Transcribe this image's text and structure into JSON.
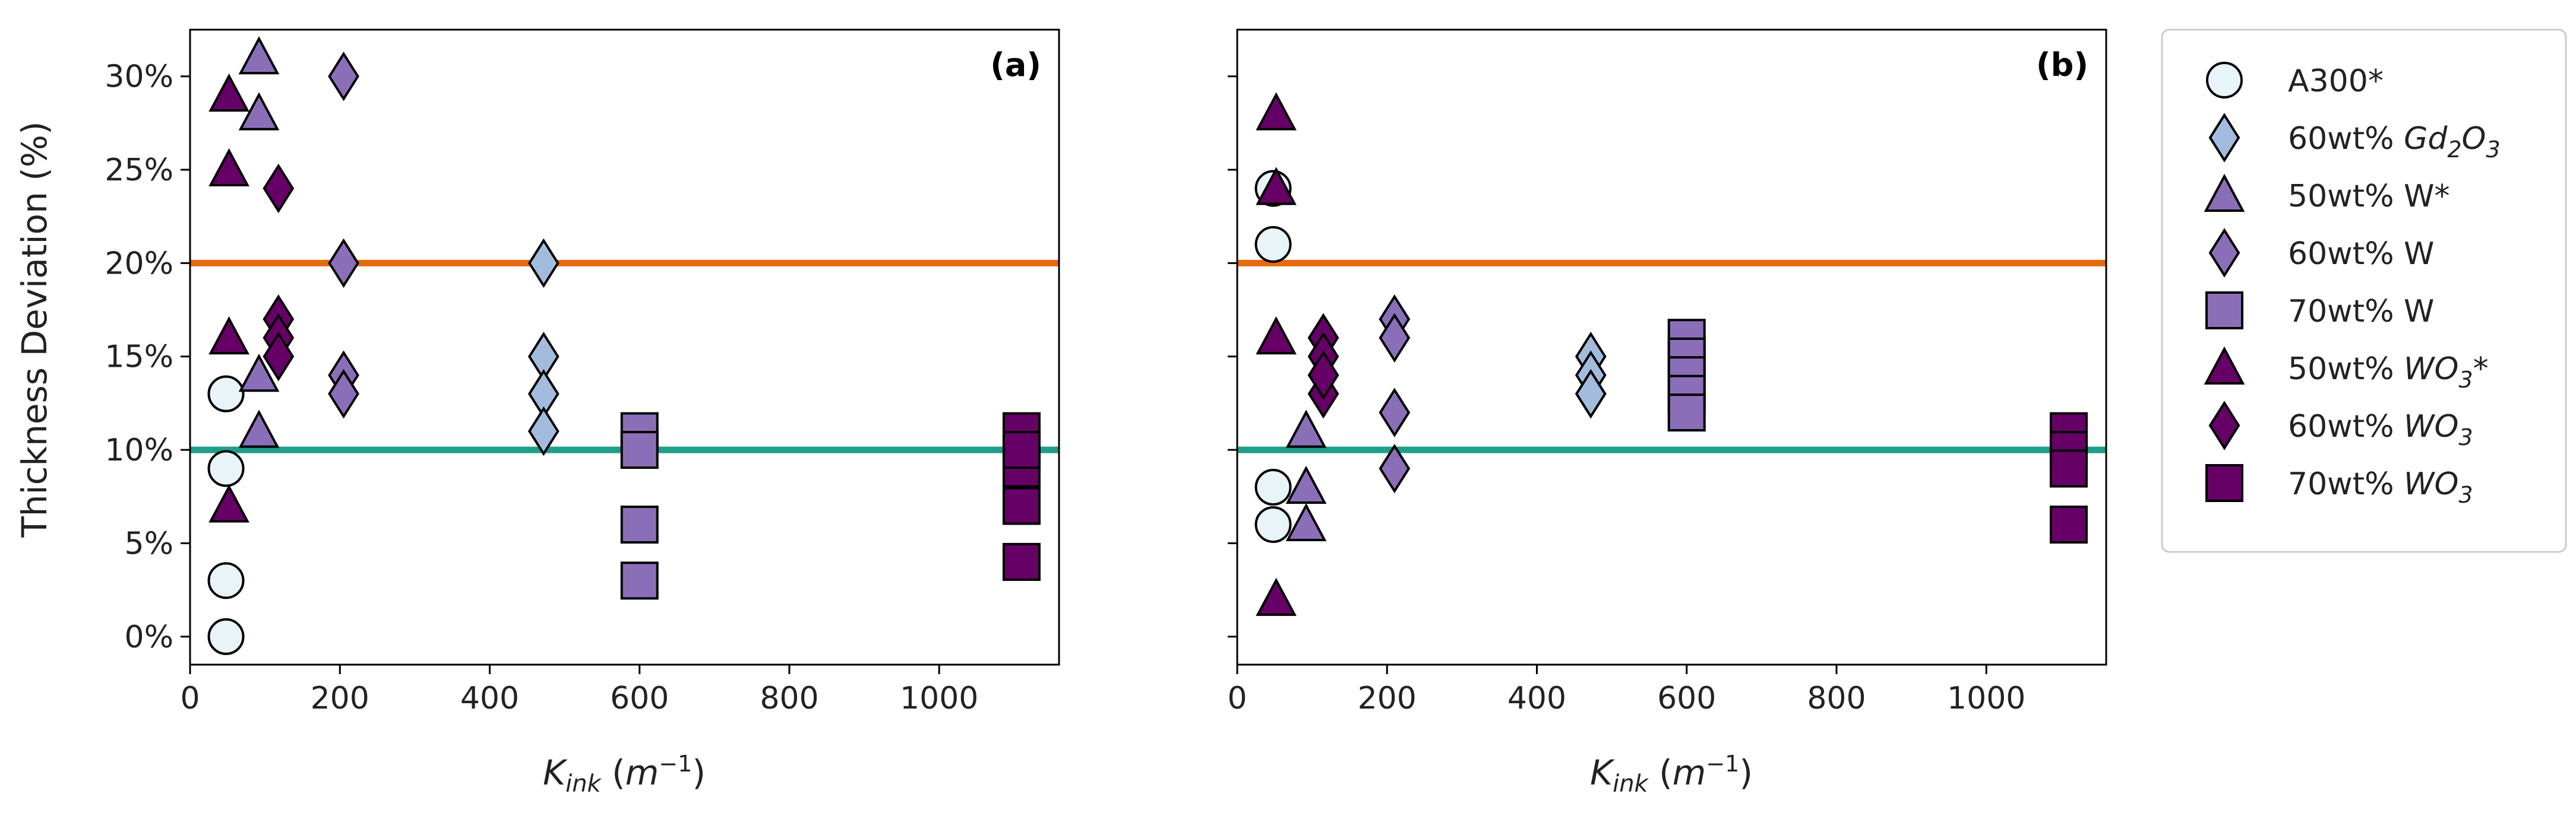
{
  "colors": {
    "A300": "#e8f4f8",
    "Gd2O3": "#a3bcde",
    "W": "#8a6fb8",
    "WO3": "#660066",
    "upper_line": "#e66a10",
    "lower_line": "#1f9e89"
  },
  "legend": [
    {
      "key": "a300",
      "label": "A300*",
      "marker": "circle",
      "color": "A300"
    },
    {
      "key": "gd60",
      "label": "60wt% Gd₂O₃",
      "marker": "diamond",
      "color": "Gd2O3"
    },
    {
      "key": "w50",
      "label": "50wt% W*",
      "marker": "triangle",
      "color": "W"
    },
    {
      "key": "w60",
      "label": "60wt% W",
      "marker": "diamond",
      "color": "W"
    },
    {
      "key": "w70",
      "label": "70wt% W",
      "marker": "square",
      "color": "W"
    },
    {
      "key": "wo50",
      "label": "50wt% WO₃*",
      "marker": "triangle",
      "color": "WO3"
    },
    {
      "key": "wo60",
      "label": "60wt% WO₃",
      "marker": "diamond",
      "color": "WO3"
    },
    {
      "key": "wo70",
      "label": "70wt% WO₃",
      "marker": "square",
      "color": "WO3"
    }
  ],
  "chart_data": [
    {
      "type": "scatter",
      "panel": "(a)",
      "xlabel": "K_ink (m⁻¹)",
      "ylabel": "Thickness Deviation (%)",
      "xlim": [
        0,
        1160
      ],
      "ylim": [
        -1.5,
        32.5
      ],
      "xticks": [
        0,
        200,
        400,
        600,
        800,
        1000
      ],
      "yticks": [
        0,
        5,
        10,
        15,
        20,
        25,
        30
      ],
      "ytick_labels": [
        "0%",
        "5%",
        "10%",
        "15%",
        "20%",
        "25%",
        "30%"
      ],
      "hlines": [
        {
          "y": 20,
          "color": "upper_line"
        },
        {
          "y": 10,
          "color": "lower_line"
        }
      ],
      "series": [
        {
          "key": "a300",
          "x": [
            48,
            48,
            48,
            48,
            48
          ],
          "y": [
            13,
            9,
            3,
            0,
            13
          ]
        },
        {
          "key": "gd60",
          "x": [
            472,
            472,
            472,
            472
          ],
          "y": [
            20,
            15,
            13,
            11
          ]
        },
        {
          "key": "w50",
          "x": [
            92,
            92,
            92,
            92
          ],
          "y": [
            31,
            28,
            14,
            11
          ]
        },
        {
          "key": "w60",
          "x": [
            205,
            205,
            205,
            205
          ],
          "y": [
            30,
            20,
            14,
            13
          ]
        },
        {
          "key": "w70",
          "x": [
            600,
            600,
            600,
            600
          ],
          "y": [
            11,
            10,
            6,
            3
          ]
        },
        {
          "key": "wo50",
          "x": [
            52,
            52,
            52,
            52
          ],
          "y": [
            29,
            25,
            16,
            7
          ]
        },
        {
          "key": "wo60",
          "x": [
            118,
            118,
            118,
            118
          ],
          "y": [
            24,
            17,
            16,
            15
          ]
        },
        {
          "key": "wo70",
          "x": [
            1110,
            1110,
            1110,
            1110,
            1110
          ],
          "y": [
            11,
            9,
            7,
            4,
            10
          ]
        }
      ]
    },
    {
      "type": "scatter",
      "panel": "(b)",
      "xlabel": "K_ink (m⁻¹)",
      "ylabel": "",
      "xlim": [
        0,
        1160
      ],
      "ylim": [
        -1.5,
        32.5
      ],
      "xticks": [
        0,
        200,
        400,
        600,
        800,
        1000
      ],
      "yticks": [
        0,
        5,
        10,
        15,
        20,
        25,
        30
      ],
      "ytick_labels": [],
      "hlines": [
        {
          "y": 20,
          "color": "upper_line"
        },
        {
          "y": 10,
          "color": "lower_line"
        }
      ],
      "series": [
        {
          "key": "a300",
          "x": [
            48,
            48,
            48,
            48
          ],
          "y": [
            24,
            21,
            8,
            6
          ]
        },
        {
          "key": "gd60",
          "x": [
            472,
            472,
            472,
            472
          ],
          "y": [
            15,
            14,
            13,
            13
          ]
        },
        {
          "key": "w50",
          "x": [
            92,
            92,
            92
          ],
          "y": [
            11,
            8,
            6
          ]
        },
        {
          "key": "w60",
          "x": [
            210,
            210,
            210,
            210
          ],
          "y": [
            17,
            16,
            12,
            9
          ]
        },
        {
          "key": "w70",
          "x": [
            600,
            600,
            600,
            600,
            600
          ],
          "y": [
            16,
            15,
            14,
            13,
            12
          ]
        },
        {
          "key": "wo50",
          "x": [
            52,
            52,
            52,
            52
          ],
          "y": [
            28,
            24,
            16,
            2
          ]
        },
        {
          "key": "wo60",
          "x": [
            115,
            115,
            115,
            115,
            115
          ],
          "y": [
            16,
            15,
            14,
            13,
            14
          ]
        },
        {
          "key": "wo70",
          "x": [
            1110,
            1110,
            1110,
            1110
          ],
          "y": [
            11,
            10,
            9,
            6
          ]
        }
      ]
    }
  ]
}
